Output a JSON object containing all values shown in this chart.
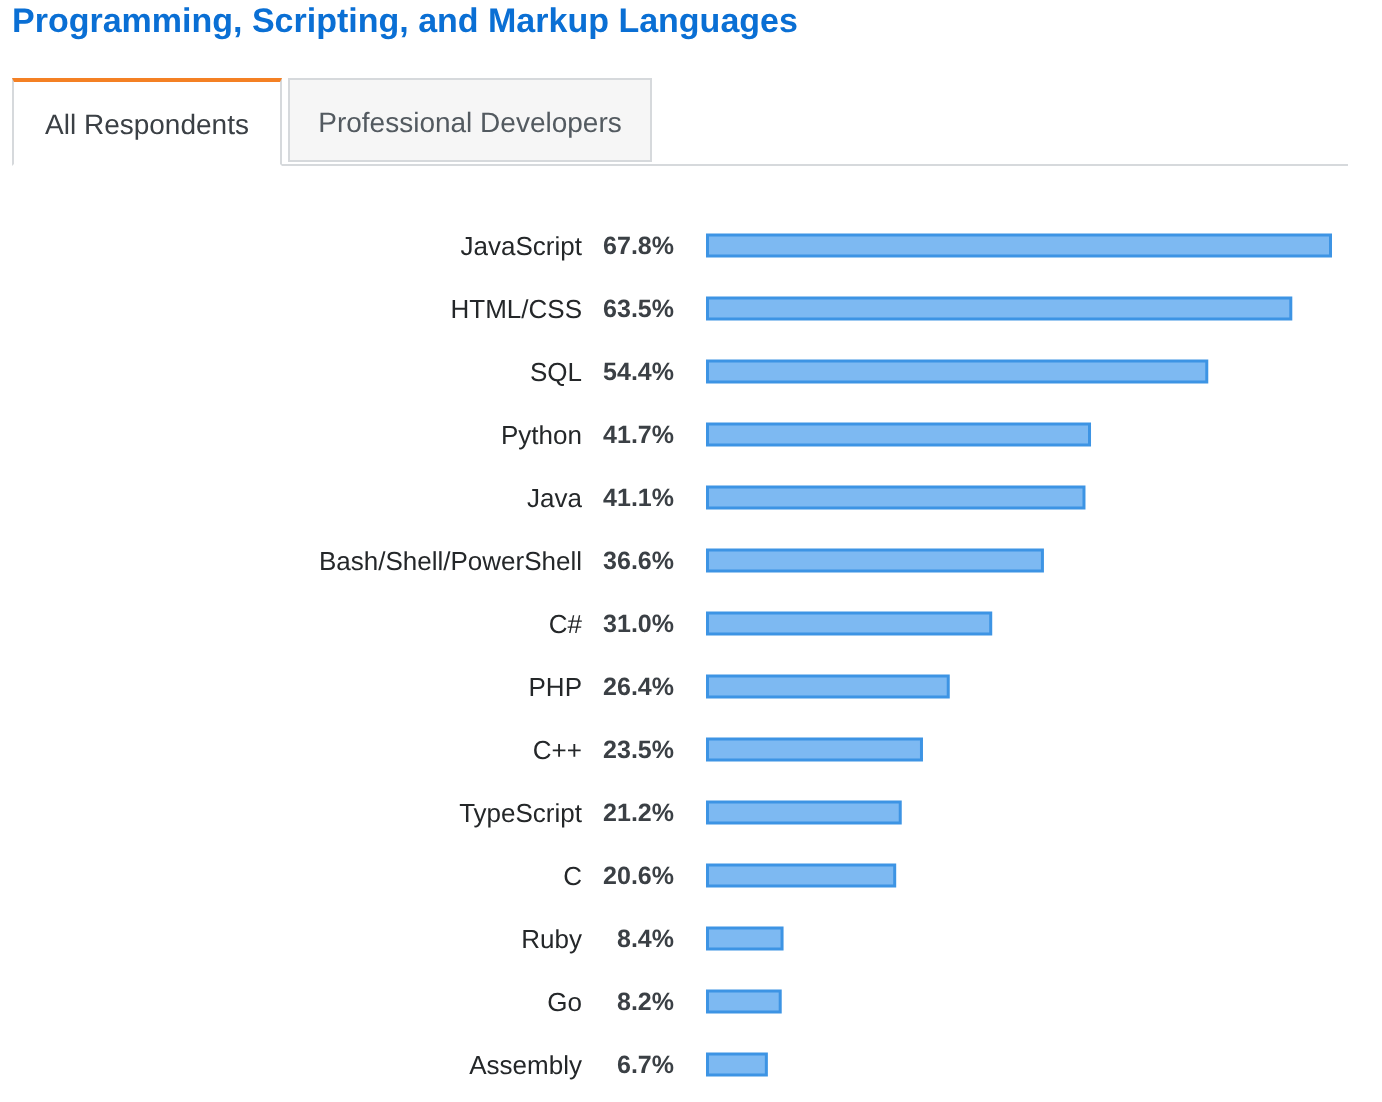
{
  "chart_data": {
    "type": "bar",
    "orientation": "horizontal",
    "title": "Programming, Scripting, and Markup Languages",
    "annotations": [
      "All Respondents",
      "Professional Developers"
    ],
    "categories": [
      "JavaScript",
      "HTML/CSS",
      "SQL",
      "Python",
      "Java",
      "Bash/Shell/PowerShell",
      "C#",
      "PHP",
      "C++",
      "TypeScript",
      "C",
      "Ruby",
      "Go",
      "Assembly"
    ],
    "values": [
      67.8,
      63.5,
      54.4,
      41.7,
      41.1,
      36.6,
      31.0,
      26.4,
      23.5,
      21.2,
      20.6,
      8.4,
      8.2,
      6.7
    ],
    "value_labels": [
      "67.8%",
      "63.5%",
      "54.4%",
      "41.7%",
      "41.1%",
      "36.6%",
      "31.0%",
      "26.4%",
      "23.5%",
      "21.2%",
      "20.6%",
      "8.4%",
      "8.2%",
      "6.7%"
    ],
    "color": "#7db9f2"
  }
}
